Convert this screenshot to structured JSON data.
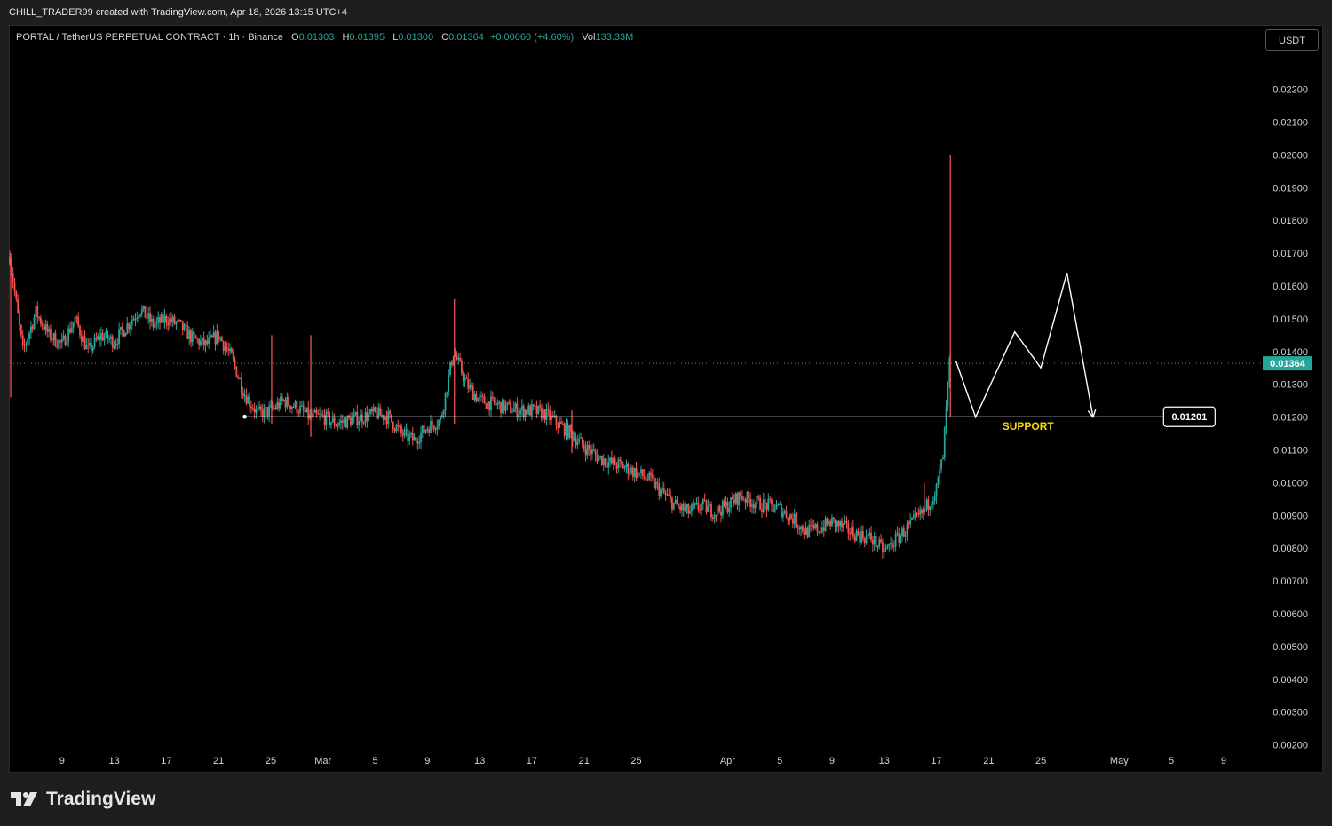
{
  "credit": "CHILL_TRADER99 created with TradingView.com, Apr 18, 2026 13:15 UTC+4",
  "legend": {
    "symbol": "PORTAL / TetherUS PERPETUAL CONTRACT · 1h · Binance",
    "open_label": "O",
    "open": "0.01303",
    "high_label": "H",
    "high": "0.01395",
    "low_label": "L",
    "low": "0.01300",
    "close_label": "C",
    "close": "0.01364",
    "change": "+0.00060 (+4.60%)",
    "vol_label": "Vol",
    "vol": "133.33M"
  },
  "currency": "USDT",
  "brand": "TradingView",
  "colors": {
    "up": "#26a69a",
    "down": "#ef5350",
    "background": "#000000",
    "axis_text": "#d1d4dc",
    "annotation": "#ffffff",
    "support_label": "#f5d800"
  },
  "chart_data": {
    "type": "candlestick",
    "ylim": [
      0.0018,
      0.0231
    ],
    "yticks": [
      "0.02200",
      "0.02100",
      "0.02000",
      "0.01900",
      "0.01800",
      "0.01700",
      "0.01600",
      "0.01500",
      "0.01400",
      "0.01300",
      "0.01200",
      "0.01100",
      "0.01000",
      "0.00900",
      "0.00800",
      "0.00700",
      "0.00600",
      "0.00500",
      "0.00400",
      "0.00300",
      "0.00200"
    ],
    "xrange": [
      "2026-02-05",
      "2026-05-12"
    ],
    "xticks": [
      {
        "date": "2026-02-09",
        "label": "9"
      },
      {
        "date": "2026-02-13",
        "label": "13"
      },
      {
        "date": "2026-02-17",
        "label": "17"
      },
      {
        "date": "2026-02-21",
        "label": "21"
      },
      {
        "date": "2026-02-25",
        "label": "25"
      },
      {
        "date": "2026-03-01",
        "label": "Mar"
      },
      {
        "date": "2026-03-05",
        "label": "5"
      },
      {
        "date": "2026-03-09",
        "label": "9"
      },
      {
        "date": "2026-03-13",
        "label": "13"
      },
      {
        "date": "2026-03-17",
        "label": "17"
      },
      {
        "date": "2026-03-21",
        "label": "21"
      },
      {
        "date": "2026-03-25",
        "label": "25"
      },
      {
        "date": "2026-04-01",
        "label": "Apr"
      },
      {
        "date": "2026-04-05",
        "label": "5"
      },
      {
        "date": "2026-04-09",
        "label": "9"
      },
      {
        "date": "2026-04-13",
        "label": "13"
      },
      {
        "date": "2026-04-17",
        "label": "17"
      },
      {
        "date": "2026-04-21",
        "label": "21"
      },
      {
        "date": "2026-04-25",
        "label": "25"
      },
      {
        "date": "2026-05-01",
        "label": "May"
      },
      {
        "date": "2026-05-05",
        "label": "5"
      },
      {
        "date": "2026-05-09",
        "label": "9"
      }
    ],
    "price_path": [
      [
        "2026-02-05",
        0.0169
      ],
      [
        "2026-02-06",
        0.014
      ],
      [
        "2026-02-07",
        0.0152
      ],
      [
        "2026-02-08",
        0.0145
      ],
      [
        "2026-02-09",
        0.0142
      ],
      [
        "2026-02-10",
        0.015
      ],
      [
        "2026-02-11",
        0.014
      ],
      [
        "2026-02-12",
        0.0145
      ],
      [
        "2026-02-13",
        0.0143
      ],
      [
        "2026-02-14",
        0.0148
      ],
      [
        "2026-02-15",
        0.0153
      ],
      [
        "2026-02-16",
        0.0148
      ],
      [
        "2026-02-17",
        0.015
      ],
      [
        "2026-02-18",
        0.0148
      ],
      [
        "2026-02-19",
        0.0144
      ],
      [
        "2026-02-20",
        0.0142
      ],
      [
        "2026-02-21",
        0.0145
      ],
      [
        "2026-02-22",
        0.0138
      ],
      [
        "2026-02-23",
        0.0127
      ],
      [
        "2026-02-24",
        0.0121
      ],
      [
        "2026-02-25",
        0.0122
      ],
      [
        "2026-02-26",
        0.0125
      ],
      [
        "2026-02-27",
        0.0123
      ],
      [
        "2026-02-28",
        0.012
      ],
      [
        "2026-03-01",
        0.012
      ],
      [
        "2026-03-02",
        0.0118
      ],
      [
        "2026-03-03",
        0.0119
      ],
      [
        "2026-03-04",
        0.012
      ],
      [
        "2026-03-05",
        0.0121
      ],
      [
        "2026-03-06",
        0.012
      ],
      [
        "2026-03-07",
        0.0115
      ],
      [
        "2026-03-08",
        0.0113
      ],
      [
        "2026-03-09",
        0.0117
      ],
      [
        "2026-03-10",
        0.0119
      ],
      [
        "2026-03-11",
        0.014
      ],
      [
        "2026-03-12",
        0.013
      ],
      [
        "2026-03-13",
        0.0125
      ],
      [
        "2026-03-14",
        0.0124
      ],
      [
        "2026-03-15",
        0.0123
      ],
      [
        "2026-03-16",
        0.0122
      ],
      [
        "2026-03-17",
        0.0122
      ],
      [
        "2026-03-18",
        0.0121
      ],
      [
        "2026-03-19",
        0.0118
      ],
      [
        "2026-03-20",
        0.0115
      ],
      [
        "2026-03-21",
        0.0111
      ],
      [
        "2026-03-22",
        0.0108
      ],
      [
        "2026-03-23",
        0.0106
      ],
      [
        "2026-03-24",
        0.0105
      ],
      [
        "2026-03-25",
        0.0103
      ],
      [
        "2026-03-26",
        0.0101
      ],
      [
        "2026-03-27",
        0.0097
      ],
      [
        "2026-03-28",
        0.0093
      ],
      [
        "2026-03-29",
        0.0091
      ],
      [
        "2026-03-30",
        0.0093
      ],
      [
        "2026-03-31",
        0.0091
      ],
      [
        "2026-04-01",
        0.0093
      ],
      [
        "2026-04-02",
        0.0096
      ],
      [
        "2026-04-03",
        0.0094
      ],
      [
        "2026-04-04",
        0.0093
      ],
      [
        "2026-04-05",
        0.0092
      ],
      [
        "2026-04-06",
        0.0089
      ],
      [
        "2026-04-07",
        0.0085
      ],
      [
        "2026-04-08",
        0.0086
      ],
      [
        "2026-04-09",
        0.0088
      ],
      [
        "2026-04-10",
        0.0086
      ],
      [
        "2026-04-11",
        0.0084
      ],
      [
        "2026-04-12",
        0.0083
      ],
      [
        "2026-04-13",
        0.0079
      ],
      [
        "2026-04-14",
        0.0083
      ],
      [
        "2026-04-15",
        0.0087
      ],
      [
        "2026-04-16",
        0.0091
      ],
      [
        "2026-04-17",
        0.0098
      ],
      [
        "2026-04-17T12:00",
        0.0108
      ],
      [
        "2026-04-18",
        0.01364
      ]
    ],
    "spikes": [
      {
        "date": "2026-02-05",
        "high": 0.017,
        "low": 0.0126
      },
      {
        "date": "2026-02-25",
        "high": 0.0145,
        "low": 0.0118
      },
      {
        "date": "2026-02-28",
        "high": 0.0145,
        "low": 0.0114
      },
      {
        "date": "2026-03-11",
        "high": 0.0156,
        "low": 0.0118
      },
      {
        "date": "2026-03-20",
        "high": 0.0122,
        "low": 0.0109
      },
      {
        "date": "2026-04-16",
        "high": 0.01,
        "low": 0.009
      },
      {
        "date": "2026-04-18",
        "high": 0.02,
        "low": 0.012
      }
    ],
    "last_price": "0.01364",
    "support": {
      "price": 0.01201,
      "label": "0.01201",
      "start": "2026-02-23",
      "end": "2026-05-01",
      "text": "SUPPORT"
    },
    "projection": [
      [
        "2026-04-18T12:00",
        0.0137
      ],
      [
        "2026-04-20",
        0.012
      ],
      [
        "2026-04-23",
        0.0146
      ],
      [
        "2026-04-25",
        0.0135
      ],
      [
        "2026-04-27",
        0.0164
      ],
      [
        "2026-04-29",
        0.012
      ]
    ]
  }
}
